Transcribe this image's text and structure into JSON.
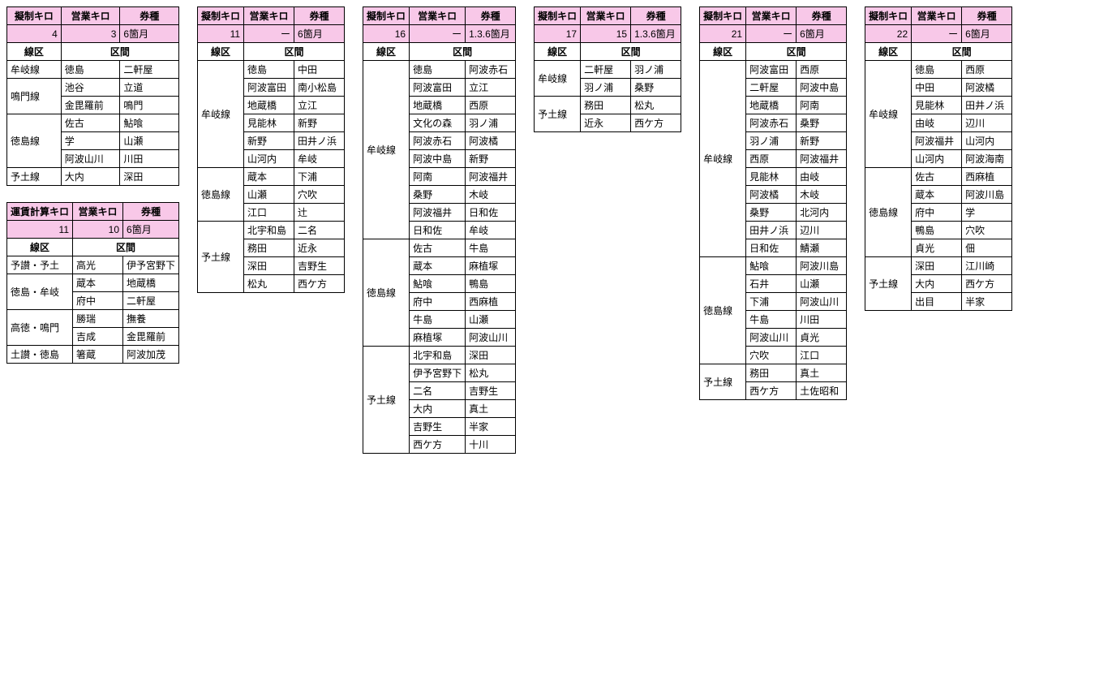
{
  "labels": {
    "gisei_kiro": "擬制キロ",
    "unchin_kiro": "運賃計算キロ",
    "eigyo_kiro": "営業キロ",
    "kenshu": "券種",
    "senku": "線区",
    "kukan": "区間"
  },
  "tables": [
    {
      "id": "t1",
      "km_label_key": "gisei_kiro",
      "km1": "4",
      "km2": "3",
      "kenshu": "6箇月",
      "groups": [
        {
          "line": "牟岐線",
          "rows": [
            [
              "徳島",
              "二軒屋"
            ]
          ]
        },
        {
          "line": "鳴門線",
          "rows": [
            [
              "池谷",
              "立道"
            ],
            [
              "金毘羅前",
              "鳴門"
            ]
          ]
        },
        {
          "line": "徳島線",
          "rows": [
            [
              "佐古",
              "鮎喰"
            ],
            [
              "学",
              "山瀬"
            ],
            [
              "阿波山川",
              "川田"
            ]
          ]
        },
        {
          "line": "予土線",
          "rows": [
            [
              "大内",
              "深田"
            ]
          ]
        }
      ]
    },
    {
      "id": "t2",
      "km_label_key": "unchin_kiro",
      "km1": "11",
      "km2": "10",
      "kenshu": "6箇月",
      "groups": [
        {
          "line": "予讃・予土",
          "rows": [
            [
              "高光",
              "伊予宮野下"
            ]
          ]
        },
        {
          "line": "徳島・牟岐",
          "rows": [
            [
              "蔵本",
              "地蔵橋"
            ],
            [
              "府中",
              "二軒屋"
            ]
          ]
        },
        {
          "line": "高徳・鳴門",
          "rows": [
            [
              "勝瑞",
              "撫養"
            ],
            [
              "吉成",
              "金毘羅前"
            ]
          ]
        },
        {
          "line": "土讃・徳島",
          "rows": [
            [
              "箸蔵",
              "阿波加茂"
            ]
          ]
        }
      ]
    },
    {
      "id": "t3",
      "km_label_key": "gisei_kiro",
      "km1": "11",
      "km2": "ー",
      "kenshu": "6箇月",
      "groups": [
        {
          "line": "牟岐線",
          "rows": [
            [
              "徳島",
              "中田"
            ],
            [
              "阿波富田",
              "南小松島"
            ],
            [
              "地蔵橋",
              "立江"
            ],
            [
              "見能林",
              "新野"
            ],
            [
              "新野",
              "田井ノ浜"
            ],
            [
              "山河内",
              "牟岐"
            ]
          ]
        },
        {
          "line": "徳島線",
          "rows": [
            [
              "蔵本",
              "下浦"
            ],
            [
              "山瀬",
              "穴吹"
            ],
            [
              "江口",
              "辻"
            ]
          ]
        },
        {
          "line": "予土線",
          "rows": [
            [
              "北宇和島",
              "二名"
            ],
            [
              "務田",
              "近永"
            ],
            [
              "深田",
              "吉野生"
            ],
            [
              "松丸",
              "西ケ方"
            ]
          ]
        }
      ]
    },
    {
      "id": "t4",
      "km_label_key": "gisei_kiro",
      "km1": "16",
      "km2": "ー",
      "kenshu": "1.3.6箇月",
      "groups": [
        {
          "line": "牟岐線",
          "rows": [
            [
              "徳島",
              "阿波赤石"
            ],
            [
              "阿波富田",
              "立江"
            ],
            [
              "地蔵橋",
              "西原"
            ],
            [
              "文化の森",
              "羽ノ浦"
            ],
            [
              "阿波赤石",
              "阿波橘"
            ],
            [
              "阿波中島",
              "新野"
            ],
            [
              "阿南",
              "阿波福井"
            ],
            [
              "桑野",
              "木岐"
            ],
            [
              "阿波福井",
              "日和佐"
            ],
            [
              "日和佐",
              "牟岐"
            ]
          ]
        },
        {
          "line": "徳島線",
          "rows": [
            [
              "佐古",
              "牛島"
            ],
            [
              "蔵本",
              "麻植塚"
            ],
            [
              "鮎喰",
              "鴨島"
            ],
            [
              "府中",
              "西麻植"
            ],
            [
              "牛島",
              "山瀬"
            ],
            [
              "麻植塚",
              "阿波山川"
            ]
          ]
        },
        {
          "line": "予土線",
          "rows": [
            [
              "北宇和島",
              "深田"
            ],
            [
              "伊予宮野下",
              "松丸"
            ],
            [
              "二名",
              "吉野生"
            ],
            [
              "大内",
              "真土"
            ],
            [
              "吉野生",
              "半家"
            ],
            [
              "西ケ方",
              "十川"
            ]
          ]
        }
      ]
    },
    {
      "id": "t5",
      "km_label_key": "gisei_kiro",
      "km1": "17",
      "km2": "15",
      "kenshu": "1.3.6箇月",
      "groups": [
        {
          "line": "牟岐線",
          "rows": [
            [
              "二軒屋",
              "羽ノ浦"
            ],
            [
              "羽ノ浦",
              "桑野"
            ]
          ]
        },
        {
          "line": "予土線",
          "rows": [
            [
              "務田",
              "松丸"
            ],
            [
              "近永",
              "西ケ方"
            ]
          ]
        }
      ]
    },
    {
      "id": "t6",
      "km_label_key": "gisei_kiro",
      "km1": "21",
      "km2": "ー",
      "kenshu": "6箇月",
      "groups": [
        {
          "line": "牟岐線",
          "rows": [
            [
              "阿波富田",
              "西原"
            ],
            [
              "二軒屋",
              "阿波中島"
            ],
            [
              "地蔵橋",
              "阿南"
            ],
            [
              "阿波赤石",
              "桑野"
            ],
            [
              "羽ノ浦",
              "新野"
            ],
            [
              "西原",
              "阿波福井"
            ],
            [
              "見能林",
              "由岐"
            ],
            [
              "阿波橘",
              "木岐"
            ],
            [
              "桑野",
              "北河内"
            ],
            [
              "田井ノ浜",
              "辺川"
            ],
            [
              "日和佐",
              "鯖瀬"
            ]
          ]
        },
        {
          "line": "徳島線",
          "rows": [
            [
              "鮎喰",
              "阿波川島"
            ],
            [
              "石井",
              "山瀬"
            ],
            [
              "下浦",
              "阿波山川"
            ],
            [
              "牛島",
              "川田"
            ],
            [
              "阿波山川",
              "貞光"
            ],
            [
              "穴吹",
              "江口"
            ]
          ]
        },
        {
          "line": "予土線",
          "rows": [
            [
              "務田",
              "真土"
            ],
            [
              "西ケ方",
              "土佐昭和"
            ]
          ]
        }
      ]
    },
    {
      "id": "t7",
      "km_label_key": "gisei_kiro",
      "km1": "22",
      "km2": "ー",
      "kenshu": "6箇月",
      "groups": [
        {
          "line": "牟岐線",
          "rows": [
            [
              "徳島",
              "西原"
            ],
            [
              "中田",
              "阿波橘"
            ],
            [
              "見能林",
              "田井ノ浜"
            ],
            [
              "由岐",
              "辺川"
            ],
            [
              "阿波福井",
              "山河内"
            ],
            [
              "山河内",
              "阿波海南"
            ]
          ]
        },
        {
          "line": "徳島線",
          "rows": [
            [
              "佐古",
              "西麻植"
            ],
            [
              "蔵本",
              "阿波川島"
            ],
            [
              "府中",
              "学"
            ],
            [
              "鴨島",
              "穴吹"
            ],
            [
              "貞光",
              "佃"
            ]
          ]
        },
        {
          "line": "予土線",
          "rows": [
            [
              "深田",
              "江川崎"
            ],
            [
              "大内",
              "西ケ方"
            ],
            [
              "出目",
              "半家"
            ]
          ]
        }
      ]
    }
  ],
  "layout": [
    [
      "t1",
      "t2"
    ],
    [
      "t3"
    ],
    [
      "t4"
    ],
    [
      "t5"
    ],
    [
      "t6"
    ],
    [
      "t7"
    ]
  ]
}
